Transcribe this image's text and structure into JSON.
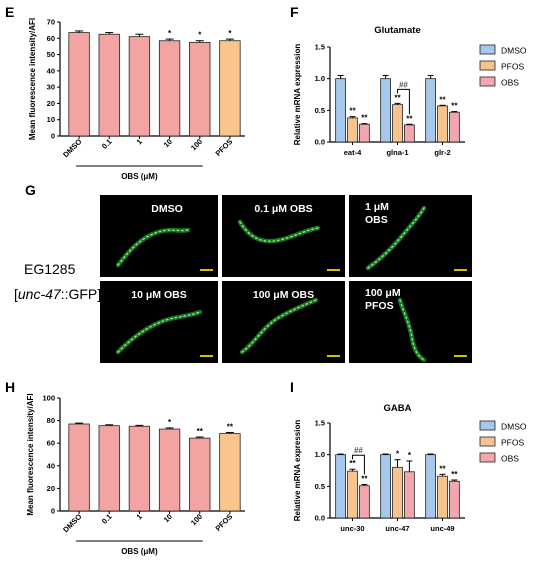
{
  "panel_labels": {
    "E": "E",
    "F": "F",
    "G": "G",
    "H": "H",
    "I": "I"
  },
  "colors": {
    "salmon": "#f4a3a3",
    "orange": "#f9c58c",
    "blue": "#9ec3ea",
    "pink": "#f4a3ac",
    "dmso": "#a6c8ec",
    "pfos": "#f7c48f",
    "obs": "#f3a6ad",
    "worm": "#39c94a"
  },
  "microscopy": {
    "strain": "EG1285",
    "genotype_prefix": "[",
    "genotype_italic": "unc-47",
    "genotype_suffix": "::GFP]",
    "cells": [
      {
        "label": "DMSO"
      },
      {
        "label": "0.1 μM OBS"
      },
      {
        "label_lines": [
          "1 μM",
          "OBS"
        ]
      },
      {
        "label": "10 μM OBS"
      },
      {
        "label": "100 μM OBS"
      },
      {
        "label_lines": [
          "100 μM",
          "PFOS"
        ]
      }
    ]
  },
  "chart_data": [
    {
      "id": "E",
      "type": "bar",
      "categories": [
        "DMSO",
        "0.1",
        "1",
        "10",
        "100",
        "PFOS"
      ],
      "values": [
        63.5,
        62.5,
        61,
        58.5,
        57.5,
        58.5
      ],
      "errors": [
        1,
        1,
        1.5,
        1,
        1,
        1
      ],
      "bar_colors": [
        "salmon",
        "salmon",
        "salmon",
        "salmon",
        "salmon",
        "orange"
      ],
      "significance": [
        "",
        "",
        "",
        "*",
        "*",
        "*"
      ],
      "ylabel": "Mean fluorescence intensity/AFI",
      "xlabel": "OBS (μM)",
      "ylim": [
        0,
        70
      ],
      "yticks": [
        0,
        10,
        20,
        30,
        40,
        50,
        60,
        70
      ]
    },
    {
      "id": "F",
      "type": "bar",
      "title": "Glutamate",
      "categories": [
        "eat-4",
        "glna-1",
        "glr-2"
      ],
      "series": [
        {
          "name": "DMSO",
          "color": "dmso",
          "values": [
            1.0,
            1.0,
            1.0
          ],
          "errors": [
            0.05,
            0.05,
            0.05
          ],
          "significance": [
            "",
            "",
            ""
          ]
        },
        {
          "name": "PFOS",
          "color": "pfos",
          "values": [
            0.38,
            0.59,
            0.57
          ],
          "errors": [
            0.02,
            0.02,
            0.01
          ],
          "significance": [
            "**",
            "**",
            "**"
          ]
        },
        {
          "name": "OBS",
          "color": "obs",
          "values": [
            0.28,
            0.27,
            0.47
          ],
          "errors": [
            0.01,
            0.01,
            0.01
          ],
          "significance": [
            "**",
            "**",
            "**"
          ]
        }
      ],
      "bracket": {
        "category": "glna-1",
        "between": [
          "PFOS",
          "OBS"
        ],
        "label": "##"
      },
      "ylabel": "Relative mRNA expression",
      "ylim": [
        0,
        1.5
      ],
      "yticks": [
        "0.0",
        "0.5",
        "1.0",
        "1.5"
      ],
      "legend": "right"
    },
    {
      "id": "H",
      "type": "bar",
      "categories": [
        "DMSO",
        "0.1",
        "1",
        "10",
        "100",
        "PFOS"
      ],
      "values": [
        77,
        75.5,
        75,
        72.5,
        64.5,
        68.5
      ],
      "errors": [
        0.8,
        0.8,
        0.8,
        1,
        1,
        1
      ],
      "bar_colors": [
        "salmon",
        "salmon",
        "salmon",
        "salmon",
        "salmon",
        "orange"
      ],
      "significance": [
        "",
        "",
        "",
        "*",
        "**",
        "**"
      ],
      "ylabel": "Mean fluorescence intensity/AFI",
      "xlabel": "OBS (μM)",
      "ylim": [
        0,
        100
      ],
      "yticks": [
        0,
        20,
        40,
        60,
        80,
        100
      ]
    },
    {
      "id": "I",
      "type": "bar",
      "title": "GABA",
      "categories": [
        "unc-30",
        "unc-47",
        "unc-49"
      ],
      "series": [
        {
          "name": "DMSO",
          "color": "dmso",
          "values": [
            1.0,
            1.0,
            1.0
          ],
          "errors": [
            0.01,
            0.01,
            0.01
          ],
          "significance": [
            "",
            "",
            ""
          ]
        },
        {
          "name": "PFOS",
          "color": "pfos",
          "values": [
            0.74,
            0.8,
            0.66
          ],
          "errors": [
            0.03,
            0.12,
            0.03
          ],
          "significance": [
            "**",
            "*",
            "**"
          ]
        },
        {
          "name": "OBS",
          "color": "obs",
          "values": [
            0.51,
            0.73,
            0.58
          ],
          "errors": [
            0.02,
            0.17,
            0.02
          ],
          "significance": [
            "**",
            "*",
            "**"
          ]
        }
      ],
      "bracket": {
        "category": "unc-30",
        "between": [
          "PFOS",
          "OBS"
        ],
        "label": "##"
      },
      "ylabel": "Relative mRNA expression",
      "ylim": [
        0,
        1.5
      ],
      "yticks": [
        "0.0",
        "0.5",
        "1.0",
        "1.5"
      ],
      "legend": "right"
    }
  ]
}
